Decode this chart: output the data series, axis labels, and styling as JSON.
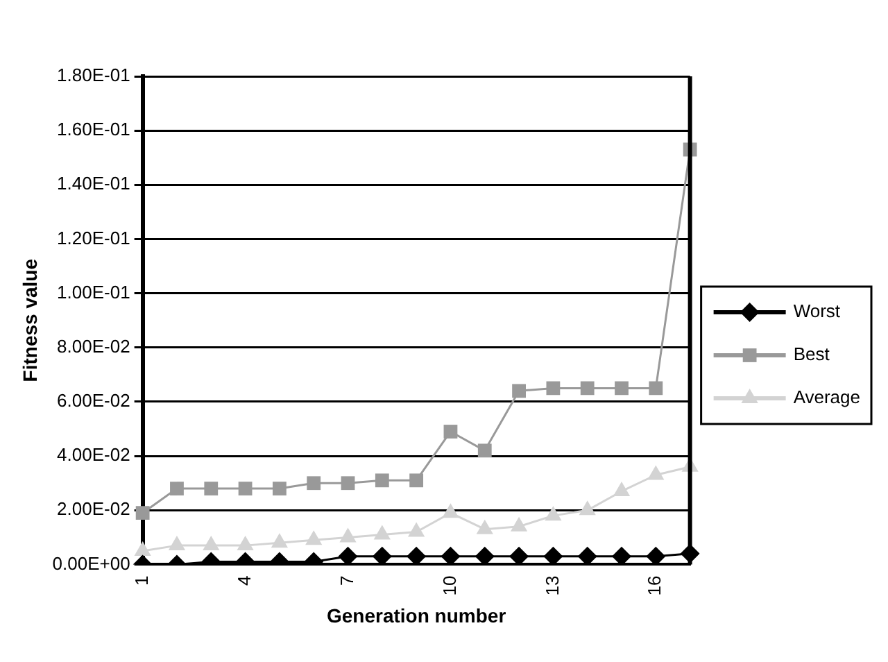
{
  "chart_data": {
    "type": "line",
    "xlabel": "Generation number",
    "ylabel": "Fitness value",
    "categories": [
      "1",
      null,
      null,
      "4",
      null,
      null,
      "7",
      null,
      null,
      "10",
      null,
      null,
      "13",
      null,
      null,
      "16",
      null
    ],
    "series": [
      {
        "name": "Worst",
        "color": "#000000",
        "marker": "diamond",
        "values": [
          0,
          0,
          0.001,
          0.001,
          0.001,
          0.001,
          0.003,
          0.003,
          0.003,
          0.003,
          0.003,
          0.003,
          0.003,
          0.003,
          0.003,
          0.003,
          0.004
        ]
      },
      {
        "name": "Best",
        "color": "#999999",
        "marker": "square",
        "values": [
          0.019,
          0.028,
          0.028,
          0.028,
          0.028,
          0.03,
          0.03,
          0.031,
          0.031,
          0.049,
          0.042,
          0.064,
          0.065,
          0.065,
          0.065,
          0.065,
          0.153
        ]
      },
      {
        "name": "Average",
        "color": "#d3d3d3",
        "marker": "triangle",
        "values": [
          0.005,
          0.007,
          0.007,
          0.007,
          0.008,
          0.009,
          0.01,
          0.011,
          0.012,
          0.019,
          0.013,
          0.014,
          0.018,
          0.02,
          0.027,
          0.033,
          0.036
        ]
      }
    ],
    "ylim": [
      0,
      0.18
    ],
    "yticks": [
      {
        "value": 0,
        "label": "0.00E+00"
      },
      {
        "value": 0.02,
        "label": "2.00E-02"
      },
      {
        "value": 0.04,
        "label": "4.00E-02"
      },
      {
        "value": 0.06,
        "label": "6.00E-02"
      },
      {
        "value": 0.08,
        "label": "8.00E-02"
      },
      {
        "value": 0.1,
        "label": "1.00E-01"
      },
      {
        "value": 0.12,
        "label": "1.20E-01"
      },
      {
        "value": 0.14,
        "label": "1.40E-01"
      },
      {
        "value": 0.16,
        "label": "1.60E-01"
      },
      {
        "value": 0.18,
        "label": "1.80E-01"
      }
    ],
    "grid": "y",
    "legend": "right",
    "line_style": "solid"
  }
}
